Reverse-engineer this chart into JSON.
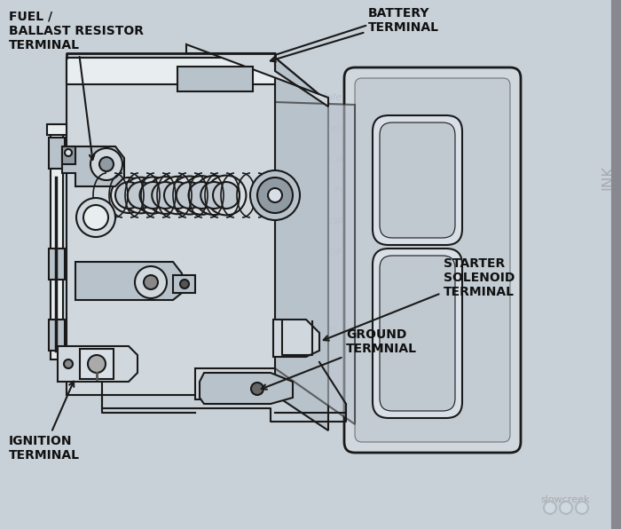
{
  "fig_bg": "#c8d0d8",
  "paper_bg": "#d8dfe6",
  "line_color": "#1a1a1a",
  "fill_light": "#d0d8de",
  "fill_medium": "#b8c2ca",
  "fill_dark": "#909aa2",
  "fill_white": "#e8edf0",
  "wm_color": "#b0bac4",
  "credit_text": "slowcreek",
  "labels": {
    "ballast": "FUEL /\nBALLAST RESISTOR\nTERMINAL",
    "battery": "BATTERY\nTERMINAL",
    "starter": "STARTER\nSOLENOID\nTERMINAL",
    "ground": "GROUND\nTERMNIAL",
    "ignition": "IGNITION\nTERMINAL"
  }
}
